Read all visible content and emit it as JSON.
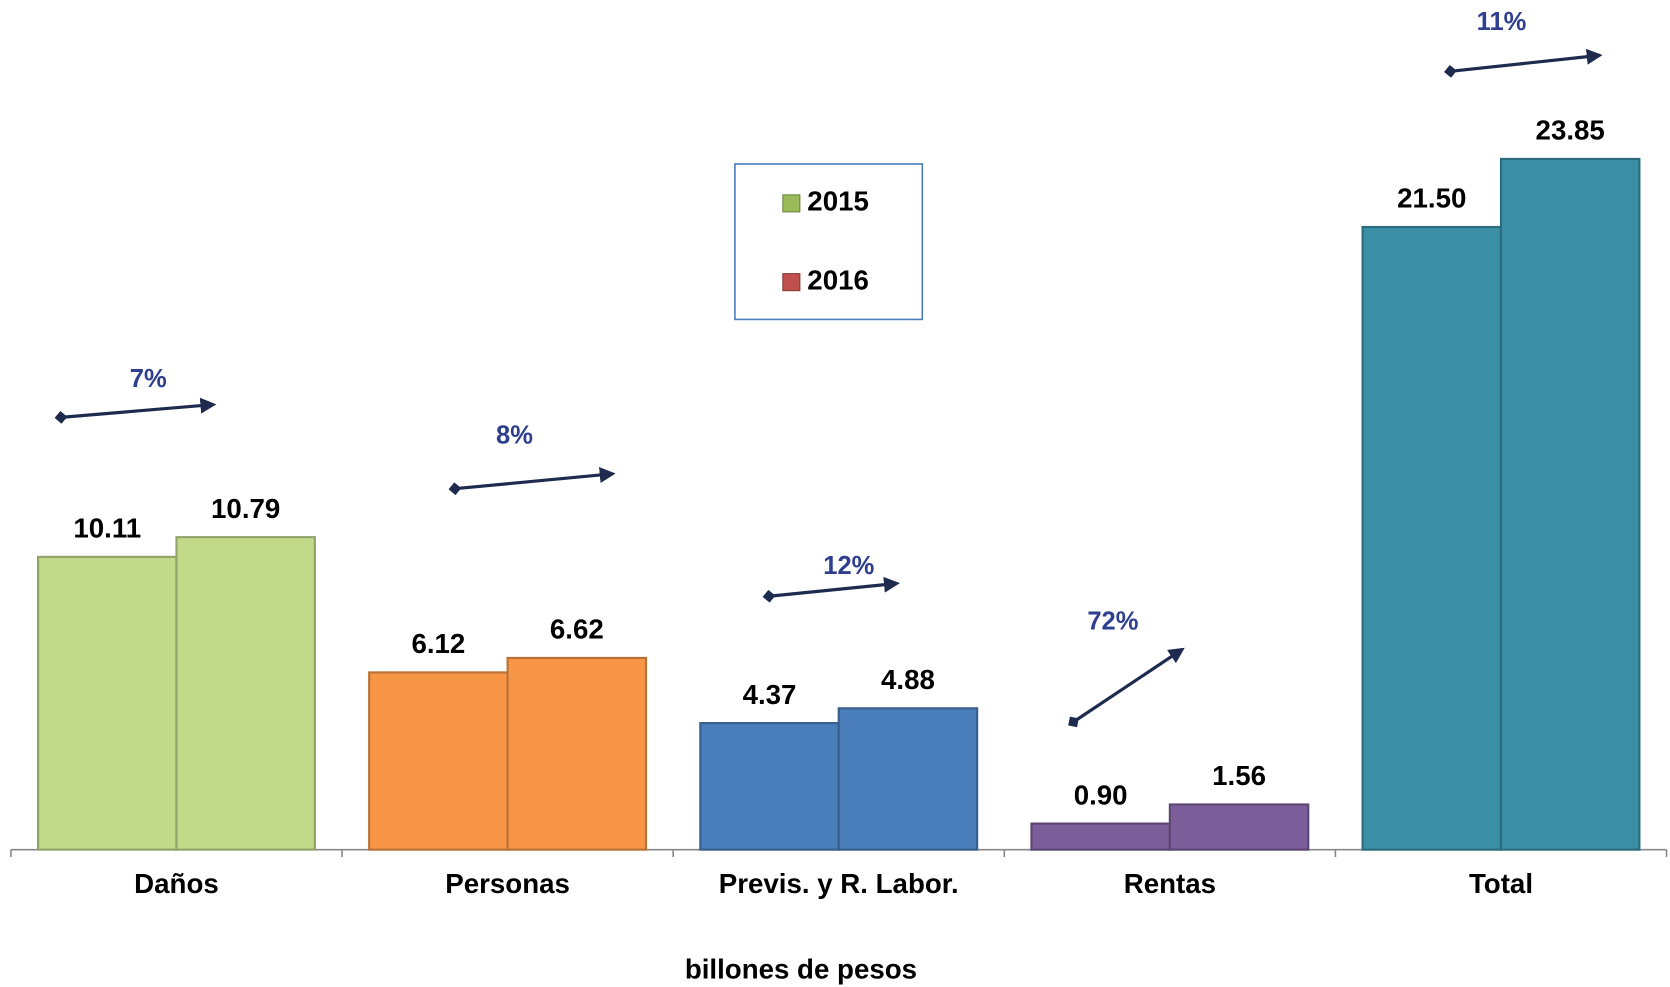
{
  "chart_data": {
    "type": "bar",
    "categories": [
      "Daños",
      "Personas",
      "Previs. y R. Labor.",
      "Rentas",
      "Total"
    ],
    "category_colors": [
      "#c3d98a",
      "#f79646",
      "#4a7ebb",
      "#7b5e9a",
      "#3a8fa6"
    ],
    "series": [
      {
        "name": "2015",
        "color": "#9bbb59",
        "values": [
          10.11,
          6.12,
          4.37,
          0.9,
          21.5
        ],
        "value_labels": [
          "10.11",
          "6.12",
          "4.37",
          "0.90",
          "21.50"
        ]
      },
      {
        "name": "2016",
        "color": "#c0504d",
        "values": [
          10.79,
          6.62,
          4.88,
          1.56,
          23.85
        ],
        "value_labels": [
          "10.79",
          "6.62",
          "4.88",
          "1.56",
          "23.85"
        ]
      }
    ],
    "annotations": [
      "7%",
      "8%",
      "12%",
      "72%",
      "11%"
    ],
    "x_label": "billones de pesos"
  }
}
